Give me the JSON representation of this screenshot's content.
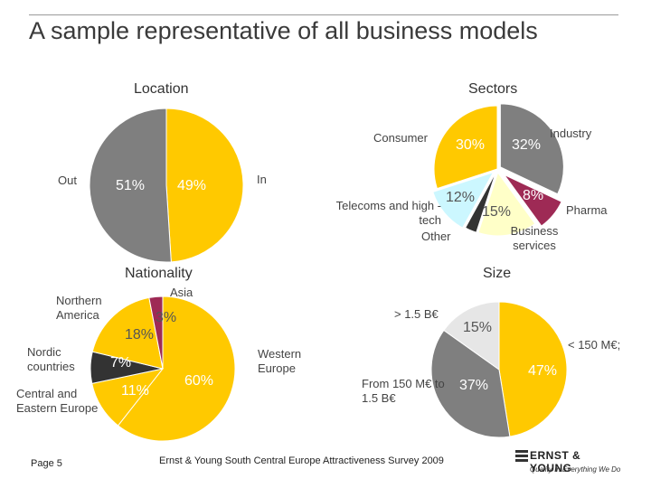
{
  "title": "A sample representative of all business models",
  "footer": {
    "page": "Page 5",
    "source": "Ernst & Young South Central Europe Attractiveness Survey 2009",
    "logo_text": "ERNST & YOUNG",
    "logo_tagline": "Quality In Everything We Do"
  },
  "colors": {
    "yellow": "#FFC900",
    "gray": "#7F7F7F",
    "dark": "#333333",
    "magenta": "#9E2A55",
    "cyan": "#CCF7FF",
    "cream": "#FFFFC8",
    "lightgray": "#E6E6E6"
  },
  "chart_data": [
    {
      "type": "pie",
      "title": "Location",
      "slices": [
        {
          "label": "In",
          "value": 49,
          "value_label": "49%",
          "color": "#FFC900"
        },
        {
          "label": "Out",
          "value": 51,
          "value_label": "51%",
          "color": "#7F7F7F"
        }
      ]
    },
    {
      "type": "pie",
      "title": "Sectors",
      "slices": [
        {
          "label": "Industry",
          "value": 32,
          "value_label": "32%",
          "color": "#7F7F7F"
        },
        {
          "label": "Pharma",
          "value": 8,
          "value_label": "8%",
          "color": "#9E2A55"
        },
        {
          "label": "Business services",
          "value": 15,
          "value_label": "15%",
          "color": "#FFFFC8"
        },
        {
          "label": "Other",
          "value": 3,
          "value_label": "",
          "color": "#333333"
        },
        {
          "label": "Telecoms and high -tech",
          "value": 12,
          "value_label": "12%",
          "color": "#CCF7FF"
        },
        {
          "label": "Consumer",
          "value": 30,
          "value_label": "30%",
          "color": "#FFC900"
        }
      ]
    },
    {
      "type": "pie",
      "title": "Nationality",
      "slices": [
        {
          "label": "Western Europe",
          "value": 60,
          "value_label": "60%",
          "color": "#FFC900"
        },
        {
          "label": "Central and Eastern Europe",
          "value": 11,
          "value_label": "11%",
          "color": "#FFC900"
        },
        {
          "label": "Nordic countries",
          "value": 7,
          "value_label": "7%",
          "color": "#333333"
        },
        {
          "label": "Northern America",
          "value": 18,
          "value_label": "18%",
          "color": "#FFC900"
        },
        {
          "label": "Asia",
          "value": 3,
          "value_label": "3%",
          "color": "#9E2A55"
        }
      ]
    },
    {
      "type": "pie",
      "title": "Size",
      "slices": [
        {
          "label": "< 150 M€;",
          "value": 47,
          "value_label": "47%",
          "color": "#FFC900"
        },
        {
          "label": "From 150 M€ to 1.5 B€",
          "value": 37,
          "value_label": "37%",
          "color": "#7F7F7F"
        },
        {
          "label": "> 1.5 B€",
          "value": 15,
          "value_label": "15%",
          "color": "#E6E6E6"
        }
      ]
    }
  ]
}
